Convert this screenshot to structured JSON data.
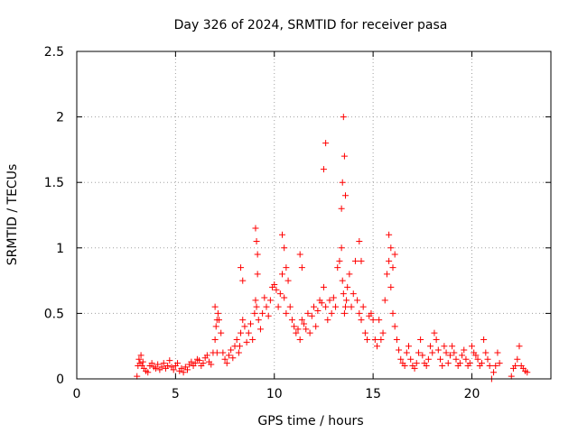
{
  "chart_data": {
    "type": "scatter",
    "title": "Day 326 of 2024, SRMTID for receiver pasa",
    "xlabel": "GPS time / hours",
    "ylabel": "SRMTID / TECUs",
    "xlim": [
      0,
      24
    ],
    "ylim": [
      0,
      2.5
    ],
    "xticks": [
      0,
      5,
      10,
      15,
      20
    ],
    "xtick_labels": [
      "0",
      "5",
      "10",
      "15",
      "20"
    ],
    "yticks": [
      0,
      0.5,
      1,
      1.5,
      2,
      2.5
    ],
    "ytick_labels": [
      "0",
      "0.5",
      "1",
      "1.5",
      "2",
      "2.5"
    ],
    "grid": true,
    "marker": "+",
    "color": "#ff0000",
    "series": [
      {
        "name": "SRMTID",
        "x": [
          3.05,
          3.1,
          3.15,
          3.2,
          3.25,
          3.3,
          3.35,
          3.4,
          3.5,
          3.6,
          3.7,
          3.8,
          3.9,
          4.0,
          4.1,
          4.2,
          4.3,
          4.4,
          4.5,
          4.6,
          4.7,
          4.8,
          4.9,
          5.0,
          5.1,
          5.2,
          5.3,
          5.4,
          5.5,
          5.6,
          5.7,
          5.8,
          5.9,
          6.0,
          6.1,
          6.2,
          6.3,
          6.4,
          6.5,
          6.6,
          6.7,
          6.8,
          6.9,
          7.0,
          7.05,
          7.1,
          7.15,
          7.2,
          7.3,
          7.4,
          7.5,
          7.6,
          7.7,
          7.8,
          7.9,
          8.0,
          8.1,
          8.2,
          8.25,
          8.3,
          8.4,
          8.5,
          8.6,
          8.7,
          8.8,
          8.9,
          9.0,
          9.05,
          9.1,
          9.15,
          9.2,
          9.3,
          9.4,
          9.5,
          9.6,
          9.7,
          9.8,
          9.9,
          10.0,
          10.1,
          10.2,
          10.3,
          10.4,
          10.5,
          10.6,
          10.7,
          10.8,
          10.9,
          11.0,
          11.1,
          11.2,
          11.3,
          11.4,
          11.5,
          11.6,
          11.7,
          11.8,
          11.9,
          12.0,
          12.1,
          12.2,
          12.3,
          12.4,
          12.5,
          12.6,
          12.7,
          12.8,
          12.9,
          13.0,
          13.1,
          13.2,
          13.3,
          13.4,
          13.45,
          13.5,
          13.55,
          13.6,
          13.65,
          13.7,
          13.8,
          13.9,
          14.0,
          14.1,
          14.2,
          14.3,
          14.4,
          14.5,
          14.6,
          14.7,
          14.8,
          14.9,
          15.0,
          15.1,
          15.2,
          15.3,
          15.4,
          15.5,
          15.6,
          15.7,
          15.8,
          15.9,
          16.0,
          16.1,
          16.2,
          16.3,
          16.4,
          16.5,
          16.6,
          16.7,
          16.8,
          16.9,
          17.0,
          17.1,
          17.2,
          17.3,
          17.4,
          17.5,
          17.6,
          17.7,
          17.8,
          17.9,
          18.0,
          18.1,
          18.2,
          18.3,
          18.4,
          18.5,
          18.6,
          18.7,
          18.8,
          18.9,
          19.0,
          19.1,
          19.2,
          19.3,
          19.4,
          19.5,
          19.6,
          19.7,
          19.8,
          19.9,
          20.0,
          20.1,
          20.2,
          20.3,
          20.4,
          20.5,
          20.6,
          20.7,
          20.8,
          20.9,
          21.0,
          21.1,
          21.2,
          21.3,
          21.4,
          22.0,
          22.1,
          22.2,
          22.3,
          22.4,
          22.5,
          22.6,
          22.7,
          22.8,
          9.05,
          9.1,
          9.15,
          10.4,
          10.5,
          10.6,
          12.5,
          12.6,
          13.4,
          13.45,
          13.5,
          13.55,
          13.6,
          14.3,
          14.4,
          15.8,
          15.9,
          16.0,
          16.1,
          8.3,
          8.4,
          7.0,
          7.1,
          11.3,
          11.4
        ],
        "y": [
          0.02,
          0.1,
          0.15,
          0.12,
          0.18,
          0.1,
          0.13,
          0.08,
          0.06,
          0.05,
          0.1,
          0.12,
          0.09,
          0.08,
          0.11,
          0.07,
          0.09,
          0.12,
          0.08,
          0.1,
          0.14,
          0.09,
          0.07,
          0.1,
          0.12,
          0.06,
          0.08,
          0.05,
          0.09,
          0.07,
          0.11,
          0.13,
          0.1,
          0.12,
          0.15,
          0.14,
          0.1,
          0.12,
          0.16,
          0.18,
          0.13,
          0.11,
          0.2,
          0.3,
          0.4,
          0.2,
          0.5,
          0.45,
          0.35,
          0.2,
          0.15,
          0.12,
          0.18,
          0.22,
          0.16,
          0.25,
          0.3,
          0.2,
          0.25,
          0.35,
          0.45,
          0.4,
          0.28,
          0.35,
          0.42,
          0.3,
          0.5,
          0.6,
          0.55,
          0.8,
          0.45,
          0.38,
          0.5,
          0.62,
          0.55,
          0.48,
          0.6,
          0.7,
          0.72,
          0.68,
          0.55,
          0.65,
          0.8,
          0.62,
          0.5,
          0.75,
          0.55,
          0.45,
          0.4,
          0.35,
          0.38,
          0.3,
          0.45,
          0.42,
          0.38,
          0.5,
          0.35,
          0.48,
          0.55,
          0.4,
          0.52,
          0.6,
          0.58,
          0.7,
          0.55,
          0.45,
          0.6,
          0.5,
          0.62,
          0.55,
          0.85,
          0.9,
          1.0,
          0.75,
          0.65,
          0.5,
          0.55,
          0.6,
          0.7,
          0.8,
          0.55,
          0.65,
          0.9,
          0.6,
          0.5,
          0.45,
          0.55,
          0.35,
          0.3,
          0.48,
          0.5,
          0.45,
          0.3,
          0.25,
          0.45,
          0.3,
          0.35,
          0.6,
          0.8,
          0.9,
          0.7,
          0.5,
          0.4,
          0.3,
          0.22,
          0.15,
          0.12,
          0.1,
          0.2,
          0.25,
          0.15,
          0.1,
          0.08,
          0.12,
          0.2,
          0.3,
          0.18,
          0.12,
          0.1,
          0.15,
          0.25,
          0.2,
          0.35,
          0.3,
          0.22,
          0.15,
          0.1,
          0.25,
          0.2,
          0.12,
          0.18,
          0.25,
          0.2,
          0.15,
          0.1,
          0.12,
          0.18,
          0.22,
          0.15,
          0.1,
          0.12,
          0.25,
          0.2,
          0.18,
          0.15,
          0.1,
          0.12,
          0.3,
          0.2,
          0.15,
          0.1,
          0.0,
          0.05,
          0.1,
          0.2,
          0.12,
          0.02,
          0.08,
          0.1,
          0.15,
          0.25,
          0.1,
          0.08,
          0.06,
          0.05,
          1.15,
          1.05,
          0.95,
          1.1,
          1.0,
          0.85,
          1.6,
          1.8,
          1.3,
          1.5,
          2.0,
          1.7,
          1.4,
          1.05,
          0.9,
          1.1,
          1.0,
          0.85,
          0.95,
          0.85,
          0.75,
          0.55,
          0.45,
          0.95,
          0.85
        ]
      }
    ]
  }
}
